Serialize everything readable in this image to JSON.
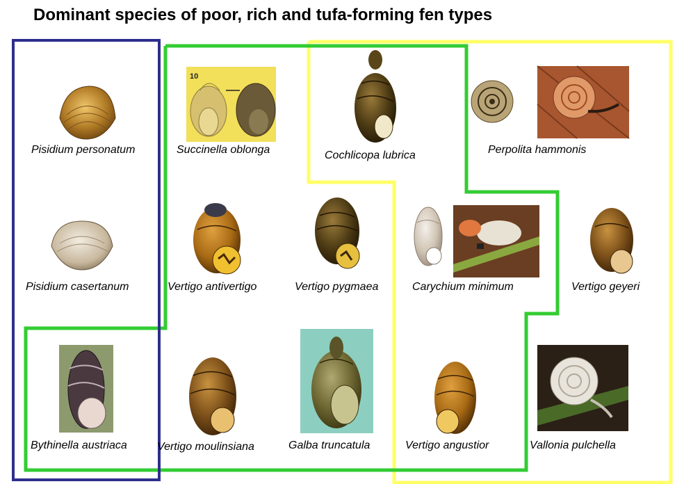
{
  "title": "Dominant species of poor, rich and tufa-forming fen types",
  "colors": {
    "poor_fen": "#2e2e8e",
    "rich_fen": "#33cc33",
    "tufa_fen": "#ffff66"
  },
  "species": {
    "pisidium_personatum": "Pisidium personatum",
    "succinella_oblonga": "Succinella oblonga",
    "succinella_scale_number": "10",
    "cochlicopa_lubrica": "Cochlicopa lubrica",
    "perpolita_hammonis": "Perpolita hammonis",
    "pisidium_casertanum": "Pisidium casertanum",
    "vertigo_antivertigo": "Vertigo antivertigo",
    "vertigo_pygmaea": "Vertigo pygmaea",
    "carychium_minimum": "Carychium minimum",
    "vertigo_geyeri": "Vertigo geyeri",
    "bythinella_austriaca": "Bythinella austriaca",
    "vertigo_moulinsiana": "Vertigo moulinsiana",
    "galba_truncatula": "Galba truncatula",
    "vertigo_angustior": "Vertigo angustior",
    "vallonia_pulchella": "Vallonia pulchella"
  }
}
